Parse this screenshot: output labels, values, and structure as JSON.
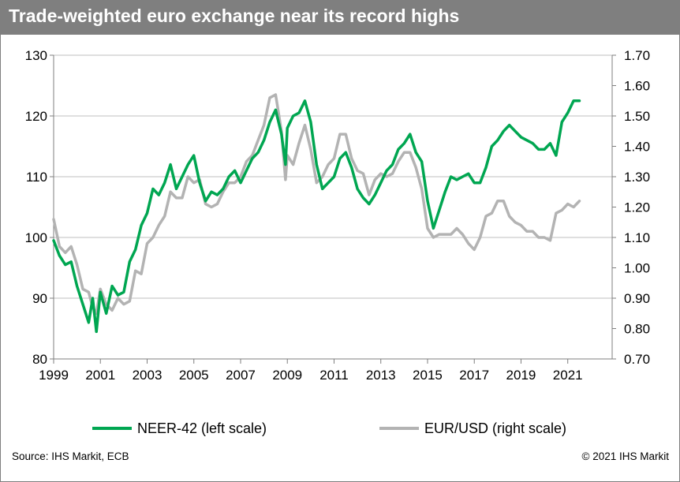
{
  "header": {
    "title": "Trade-weighted euro exchange near its record highs"
  },
  "footer": {
    "source": "Source: IHS Markit, ECB",
    "copyright": "© 2021 IHS Markit"
  },
  "colors": {
    "neer": "#00a651",
    "eurusd": "#b3b3b3",
    "title_bar": "#7f7f7f"
  },
  "chart_data": {
    "type": "line",
    "title": "Trade-weighted euro exchange near its record highs",
    "x_ticks": [
      "1999",
      "2001",
      "2003",
      "2005",
      "2007",
      "2009",
      "2011",
      "2013",
      "2015",
      "2017",
      "2019",
      "2021"
    ],
    "x_range": [
      1999.0,
      2022.9
    ],
    "y_left": {
      "range": [
        80,
        130
      ],
      "ticks": [
        "80",
        "90",
        "100",
        "110",
        "120",
        "130"
      ]
    },
    "y_right": {
      "range": [
        0.7,
        1.7
      ],
      "ticks": [
        "0.70",
        "0.80",
        "0.90",
        "1.00",
        "1.10",
        "1.20",
        "1.30",
        "1.40",
        "1.50",
        "1.60",
        "1.70"
      ]
    },
    "grid": "horizontal",
    "legend_position": "bottom",
    "series": [
      {
        "name": "NEER-42 (left scale)",
        "axis": "left",
        "x": [
          1999.0,
          1999.25,
          1999.5,
          1999.75,
          2000.0,
          2000.25,
          2000.5,
          2000.67,
          2000.83,
          2001.0,
          2001.25,
          2001.5,
          2001.75,
          2002.0,
          2002.25,
          2002.5,
          2002.75,
          2003.0,
          2003.25,
          2003.5,
          2003.75,
          2004.0,
          2004.25,
          2004.5,
          2004.75,
          2005.0,
          2005.25,
          2005.5,
          2005.75,
          2006.0,
          2006.25,
          2006.5,
          2006.75,
          2007.0,
          2007.25,
          2007.5,
          2007.75,
          2008.0,
          2008.25,
          2008.5,
          2008.75,
          2008.92,
          2009.0,
          2009.25,
          2009.5,
          2009.75,
          2010.0,
          2010.25,
          2010.5,
          2010.75,
          2011.0,
          2011.25,
          2011.5,
          2011.75,
          2012.0,
          2012.25,
          2012.5,
          2012.75,
          2013.0,
          2013.25,
          2013.5,
          2013.75,
          2014.0,
          2014.25,
          2014.5,
          2014.75,
          2015.0,
          2015.25,
          2015.5,
          2015.75,
          2016.0,
          2016.25,
          2016.5,
          2016.75,
          2017.0,
          2017.25,
          2017.5,
          2017.75,
          2018.0,
          2018.25,
          2018.5,
          2018.75,
          2019.0,
          2019.25,
          2019.5,
          2019.75,
          2020.0,
          2020.25,
          2020.5,
          2020.75,
          2021.0,
          2021.25,
          2021.5
        ],
        "values": [
          99.5,
          97.0,
          95.5,
          96.0,
          92.0,
          89.0,
          86.0,
          90.0,
          84.5,
          91.0,
          87.5,
          92.0,
          90.5,
          91.0,
          96.0,
          98.0,
          102.0,
          104.0,
          108.0,
          107.0,
          109.0,
          112.0,
          108.0,
          110.0,
          112.0,
          113.5,
          109.0,
          106.0,
          107.5,
          107.0,
          108.0,
          110.0,
          111.0,
          109.0,
          111.0,
          113.0,
          114.0,
          116.0,
          119.0,
          121.0,
          117.0,
          112.0,
          118.0,
          120.0,
          120.5,
          122.5,
          119.0,
          112.0,
          108.0,
          109.0,
          110.0,
          113.0,
          114.0,
          111.5,
          108.0,
          106.5,
          105.5,
          107.0,
          109.0,
          111.0,
          112.0,
          114.5,
          115.5,
          117.0,
          114.0,
          112.5,
          106.0,
          101.5,
          104.5,
          107.5,
          110.0,
          109.5,
          110.0,
          110.5,
          109.0,
          109.0,
          111.5,
          115.0,
          116.0,
          117.5,
          118.5,
          117.5,
          116.5,
          116.0,
          115.5,
          114.5,
          114.5,
          115.5,
          113.5,
          119.0,
          120.5,
          122.5,
          122.5
        ]
      },
      {
        "name": "EUR/USD (right scale)",
        "axis": "right",
        "x": [
          1999.0,
          1999.25,
          1999.5,
          1999.75,
          2000.0,
          2000.25,
          2000.5,
          2000.67,
          2000.83,
          2001.0,
          2001.25,
          2001.5,
          2001.75,
          2002.0,
          2002.25,
          2002.5,
          2002.75,
          2003.0,
          2003.25,
          2003.5,
          2003.75,
          2004.0,
          2004.25,
          2004.5,
          2004.75,
          2005.0,
          2005.25,
          2005.5,
          2005.75,
          2006.0,
          2006.25,
          2006.5,
          2006.75,
          2007.0,
          2007.25,
          2007.5,
          2007.75,
          2008.0,
          2008.25,
          2008.5,
          2008.75,
          2008.92,
          2009.0,
          2009.25,
          2009.5,
          2009.75,
          2010.0,
          2010.25,
          2010.5,
          2010.75,
          2011.0,
          2011.25,
          2011.5,
          2011.75,
          2012.0,
          2012.25,
          2012.5,
          2012.75,
          2013.0,
          2013.25,
          2013.5,
          2013.75,
          2014.0,
          2014.25,
          2014.5,
          2014.75,
          2015.0,
          2015.25,
          2015.5,
          2015.75,
          2016.0,
          2016.25,
          2016.5,
          2016.75,
          2017.0,
          2017.25,
          2017.5,
          2017.75,
          2018.0,
          2018.25,
          2018.5,
          2018.75,
          2019.0,
          2019.25,
          2019.5,
          2019.75,
          2020.0,
          2020.25,
          2020.5,
          2020.75,
          2021.0,
          2021.25,
          2021.5
        ],
        "values": [
          1.16,
          1.07,
          1.05,
          1.07,
          1.01,
          0.93,
          0.92,
          0.87,
          0.85,
          0.93,
          0.88,
          0.86,
          0.9,
          0.88,
          0.89,
          0.99,
          0.98,
          1.08,
          1.1,
          1.14,
          1.17,
          1.25,
          1.23,
          1.23,
          1.3,
          1.28,
          1.29,
          1.21,
          1.2,
          1.21,
          1.25,
          1.28,
          1.28,
          1.3,
          1.35,
          1.37,
          1.42,
          1.47,
          1.56,
          1.57,
          1.45,
          1.29,
          1.37,
          1.34,
          1.41,
          1.47,
          1.39,
          1.28,
          1.3,
          1.34,
          1.36,
          1.44,
          1.44,
          1.36,
          1.32,
          1.31,
          1.24,
          1.29,
          1.31,
          1.3,
          1.31,
          1.35,
          1.38,
          1.38,
          1.33,
          1.26,
          1.13,
          1.1,
          1.11,
          1.11,
          1.11,
          1.13,
          1.11,
          1.08,
          1.06,
          1.1,
          1.17,
          1.18,
          1.22,
          1.22,
          1.17,
          1.15,
          1.14,
          1.12,
          1.12,
          1.1,
          1.1,
          1.09,
          1.18,
          1.19,
          1.21,
          1.2,
          1.22
        ]
      }
    ]
  }
}
